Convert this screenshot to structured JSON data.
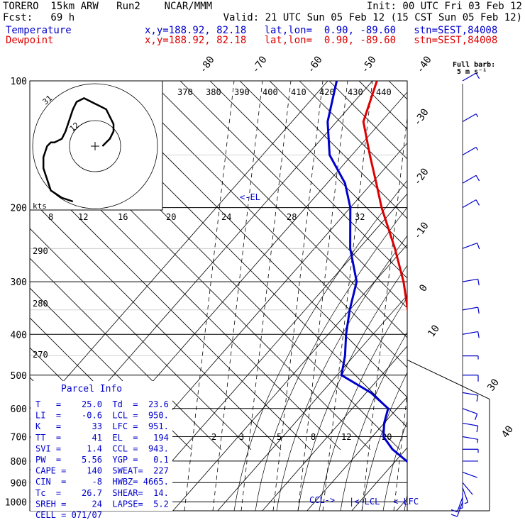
{
  "header": {
    "line1_left": "TORERO  15km ARW   Run2    NCAR/MMM",
    "line1_right": "Init: 00 UTC Fri 03 Feb 12",
    "line2_left": "Fcst:   69 h",
    "line2_right": "Valid: 21 UTC Sun 05 Feb 12 (15 CST Sun 05 Feb 12)",
    "series1_label": "Temperature",
    "series1_info": "x,y=188.92, 82.18   lat,lon=  0.90, -89.60   stn=SEST,84008",
    "series2_label": "Dewpoint",
    "series2_info": "x,y=188.92, 82.18   lat,lon=  0.90, -89.60   stn=SEST,84008",
    "full_barb_label": "Full barb:",
    "full_barb_value": "5 m s⁻¹"
  },
  "colors": {
    "temperature": "#dd0000",
    "dewpoint": "#0000cc",
    "parcel": "#0000cc",
    "isotherm": "#000000"
  },
  "parcel_info": {
    "title": "Parcel Info",
    "rows": [
      "T   =    25.0  Td  =  23.6",
      "LI  =    -0.6  LCL =  950.",
      "K   =      33  LFC =  951.",
      "TT  =      41  EL  =   194",
      "SVI =     1.4  CCL =  943.",
      "PW  =    5.56  YGP =   0.1",
      "CAPE =    140  SWEAT=  227",
      "CIN  =     -8  HWBZ= 4665.",
      "Tc  =    26.7  SHEAR=  14.",
      "SREH =     24  LAPSE=  5.2",
      "CELL = 071/07"
    ]
  },
  "hodograph": {
    "units_label": "kts",
    "ring_labels": [
      "12",
      "31"
    ],
    "wind_u": [
      2,
      3,
      4,
      5,
      5,
      4,
      3,
      1,
      -1,
      -3,
      -5,
      -6,
      -7,
      -8,
      -9,
      -11,
      -12,
      -13,
      -14,
      -14,
      -13,
      -12,
      -9,
      -6
    ],
    "wind_v": [
      0,
      1,
      2,
      4,
      6,
      8,
      10,
      11,
      12,
      13,
      12,
      10,
      7,
      4,
      2,
      1,
      1,
      0,
      -3,
      -6,
      -9,
      -12,
      -14,
      -15
    ]
  },
  "level_markers": {
    "el": "<-EL",
    "ccl": "CCL->",
    "lcl": "|<-LCL",
    "lfc": "<-LFC"
  },
  "chart_data": {
    "type": "line",
    "title": "",
    "xlabel": "",
    "ylabel": "",
    "y_scale": "log",
    "ylim": [
      1000,
      100
    ],
    "pressure_ticks": [
      100,
      200,
      300,
      400,
      500,
      600,
      700,
      800,
      900,
      1000
    ],
    "temperature_ticks": [
      -90,
      -80,
      -70,
      -60,
      -50,
      -40,
      -30,
      -20,
      -10,
      0,
      10,
      20,
      30,
      40
    ],
    "temperature_ticks_labeled": [
      -80,
      -70,
      -60,
      -50,
      -40,
      -30,
      -20,
      -10,
      0,
      10,
      30,
      40
    ],
    "theta_e_labels": [
      370,
      380,
      390,
      400,
      410,
      420,
      430,
      440
    ],
    "mixing_ratio_labels_top": [
      8,
      12,
      16,
      20,
      24,
      28,
      32
    ],
    "mixing_ratio_labels_bottom": [
      2,
      3,
      5,
      8,
      12,
      20
    ],
    "dry_adiabat_labels": [
      290,
      280,
      270
    ],
    "series": [
      {
        "name": "Temperature",
        "pressure": [
          1000,
          970,
          950,
          925,
          900,
          850,
          800,
          750,
          700,
          650,
          600,
          550,
          500,
          450,
          400,
          350,
          300,
          250,
          200,
          175,
          150,
          125,
          100
        ],
        "temperature": [
          25,
          22.8,
          21.5,
          20,
          18.3,
          15.3,
          12,
          9.5,
          5.6,
          2.5,
          -1,
          -5.5,
          -10,
          -15,
          -20.5,
          -27,
          -33.5,
          -42,
          -53,
          -59,
          -66,
          -74,
          -79
        ]
      },
      {
        "name": "Dewpoint",
        "pressure": [
          1000,
          970,
          950,
          925,
          900,
          850,
          800,
          750,
          700,
          650,
          600,
          550,
          500,
          450,
          400,
          350,
          300,
          250,
          200,
          175,
          150,
          125,
          100
        ],
        "temperature": [
          23.6,
          21.5,
          20,
          17,
          13,
          7.5,
          2.5,
          -3,
          -7.5,
          -10,
          -12,
          -19,
          -29,
          -32,
          -36,
          -40,
          -44,
          -52,
          -60,
          -66,
          -75,
          -82,
          -88
        ]
      },
      {
        "name": "Parcel",
        "pressure": [
          1000,
          950,
          900,
          850,
          800,
          700,
          600,
          500,
          400,
          300,
          250,
          200,
          194
        ],
        "temperature": [
          25,
          21,
          19.5,
          17.8,
          16,
          11,
          5,
          -2.5,
          -11,
          -25,
          -34,
          -46,
          -48
        ]
      }
    ],
    "wind_barbs": {
      "pressure": [
        1000,
        975,
        950,
        925,
        900,
        850,
        800,
        750,
        700,
        650,
        600,
        550,
        500,
        450,
        400,
        350,
        300,
        250,
        200,
        175,
        150,
        125,
        100
      ],
      "speed_ms": [
        5,
        5,
        4,
        3,
        2,
        1,
        2,
        3,
        4,
        5,
        6,
        5,
        5,
        4,
        5,
        5,
        5,
        6,
        6,
        5,
        4,
        3,
        5
      ],
      "direction_deg": [
        200,
        200,
        180,
        160,
        140,
        110,
        90,
        90,
        100,
        100,
        110,
        100,
        90,
        90,
        80,
        80,
        80,
        70,
        60,
        60,
        60,
        60,
        60
      ]
    }
  }
}
